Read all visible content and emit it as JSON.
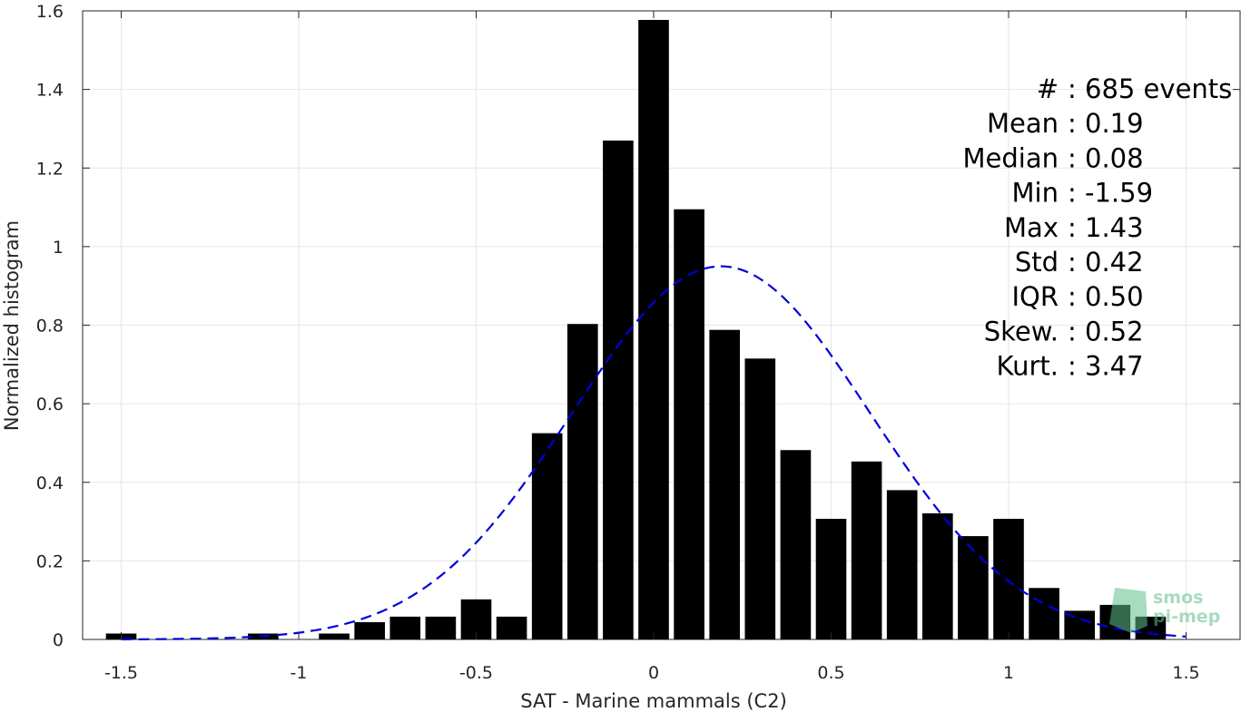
{
  "chart_data": {
    "type": "bar",
    "xlabel": "SAT - Marine mammals (C2)",
    "ylabel": "Normalized histogram",
    "xlim": [
      -1.6,
      1.6
    ],
    "ylim": [
      0,
      1.6
    ],
    "xticks": [
      -1.5,
      -1,
      -0.5,
      0,
      0.5,
      1,
      1.5
    ],
    "xtick_labels": [
      "-1.5",
      "-1",
      "-0.5",
      "0",
      "0.5",
      "1",
      "1.5"
    ],
    "yticks": [
      0,
      0.2,
      0.4,
      0.6,
      0.8,
      1,
      1.2,
      1.4,
      1.6
    ],
    "ytick_labels": [
      "0",
      "0.2",
      "0.4",
      "0.6",
      "0.8",
      "1",
      "1.2",
      "1.4",
      "1.6"
    ],
    "grid": true,
    "bin_width": 0.1,
    "bar_color": "#000000",
    "bars": [
      {
        "x": -1.5,
        "y": 0.015
      },
      {
        "x": -1.1,
        "y": 0.015
      },
      {
        "x": -0.9,
        "y": 0.015
      },
      {
        "x": -0.8,
        "y": 0.044
      },
      {
        "x": -0.7,
        "y": 0.058
      },
      {
        "x": -0.6,
        "y": 0.058
      },
      {
        "x": -0.5,
        "y": 0.102
      },
      {
        "x": -0.4,
        "y": 0.058
      },
      {
        "x": -0.3,
        "y": 0.525
      },
      {
        "x": -0.2,
        "y": 0.803
      },
      {
        "x": -0.1,
        "y": 1.27
      },
      {
        "x": 0.0,
        "y": 1.577
      },
      {
        "x": 0.1,
        "y": 1.095
      },
      {
        "x": 0.2,
        "y": 0.788
      },
      {
        "x": 0.3,
        "y": 0.715
      },
      {
        "x": 0.4,
        "y": 0.482
      },
      {
        "x": 0.5,
        "y": 0.307
      },
      {
        "x": 0.6,
        "y": 0.453
      },
      {
        "x": 0.7,
        "y": 0.38
      },
      {
        "x": 0.8,
        "y": 0.321
      },
      {
        "x": 0.9,
        "y": 0.263
      },
      {
        "x": 1.0,
        "y": 0.307
      },
      {
        "x": 1.1,
        "y": 0.131
      },
      {
        "x": 1.2,
        "y": 0.073
      },
      {
        "x": 1.3,
        "y": 0.088
      },
      {
        "x": 1.4,
        "y": 0.058
      }
    ],
    "fit_curve": {
      "color": "#0000dd",
      "style": "dashed",
      "mean": 0.19,
      "std": 0.42,
      "x_range": [
        -1.5,
        1.5
      ]
    },
    "stats": [
      {
        "label": "#  : 685 events"
      },
      {
        "label": "Mean : 0.19"
      },
      {
        "label": "Median : 0.08"
      },
      {
        "label": "Min : -1.59"
      },
      {
        "label": "Max : 1.43"
      },
      {
        "label": "Std : 0.42"
      },
      {
        "label": "IQR : 0.50"
      },
      {
        "label": "Skew. : 0.52"
      },
      {
        "label": "Kurt. : 3.47"
      }
    ]
  },
  "watermark": {
    "line1": "smos",
    "line2": "pi-mep",
    "color": "#5fbf8a"
  }
}
